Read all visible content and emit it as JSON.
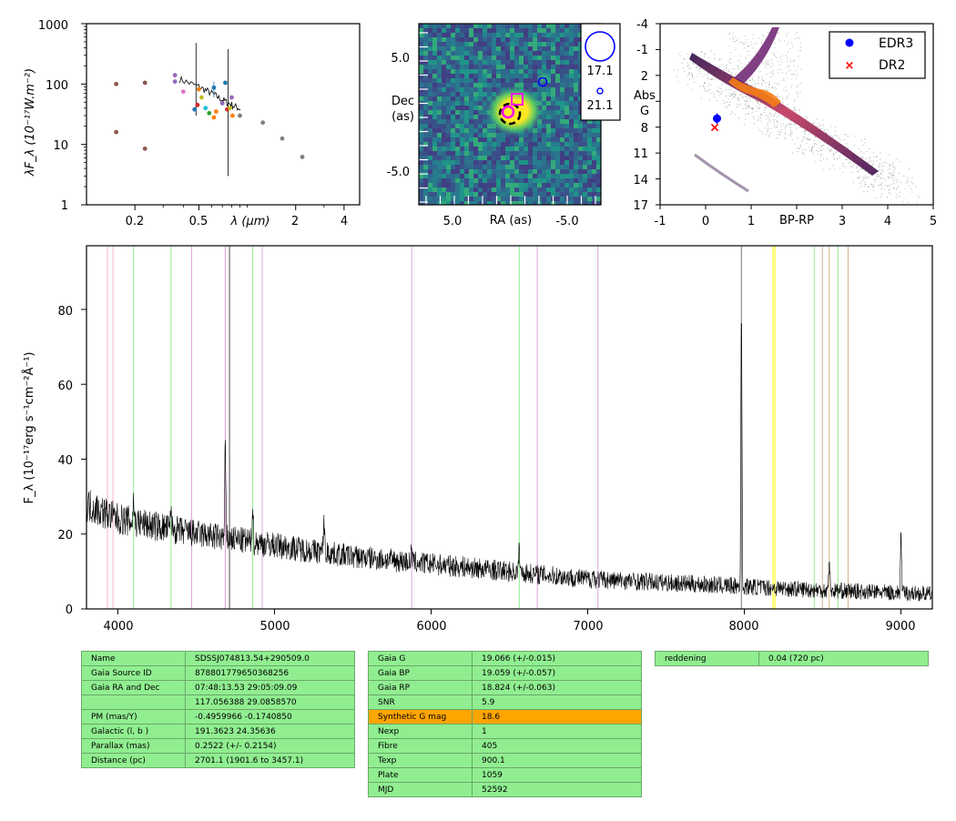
{
  "panels": {
    "sed": {
      "ylabel": "λF_λ (10⁻¹⁷W.m⁻²)",
      "xlabel": "λ (μm)",
      "yticks": [
        "1",
        "10",
        "100",
        "1000"
      ],
      "xticks": [
        "0.2",
        "0.5",
        "2",
        "4"
      ]
    },
    "image": {
      "xlabel": "RA (as)",
      "ylabel_1": "Dec",
      "ylabel_2": "(as)",
      "xticks": [
        "5.0",
        "-5.0"
      ],
      "yticks": [
        "5.0",
        "-5.0"
      ],
      "legend": [
        "17.1",
        "21.1"
      ]
    },
    "hr": {
      "xlabel": "BP-RP",
      "ylabel_1": "Abs",
      "ylabel_2": "G",
      "xticks": [
        "-1",
        "0",
        "1",
        "3",
        "4",
        "5"
      ],
      "yticks": [
        "-4",
        "-1",
        "2",
        "8",
        "11",
        "14",
        "17"
      ],
      "legend": [
        "EDR3",
        "DR2"
      ]
    },
    "spectrum": {
      "ylabel": "F_λ (10⁻¹⁷erg s⁻¹cm⁻²Å⁻¹)",
      "xticks": [
        "4000",
        "5000",
        "6000",
        "7000",
        "8000",
        "9000"
      ],
      "yticks": [
        "0",
        "20",
        "40",
        "60",
        "80"
      ]
    }
  },
  "chart_data": [
    {
      "type": "scatter",
      "name": "SED",
      "xlabel": "λ (μm)",
      "ylabel": "λF_λ (10⁻¹⁷W.m⁻²)",
      "xscale": "log",
      "yscale": "log",
      "xlim": [
        0.1,
        5.0
      ],
      "ylim": [
        1,
        1000
      ],
      "points": [
        {
          "x": 0.153,
          "y": 100,
          "c": "#8c564b"
        },
        {
          "x": 0.153,
          "y": 16,
          "c": "#8c564b"
        },
        {
          "x": 0.231,
          "y": 105,
          "c": "#8c564b"
        },
        {
          "x": 0.231,
          "y": 8.5,
          "c": "#8c564b"
        },
        {
          "x": 0.355,
          "y": 140,
          "c": "#9467bd"
        },
        {
          "x": 0.355,
          "y": 110,
          "c": "#9467bd"
        },
        {
          "x": 0.4,
          "y": 75,
          "c": "#e377c2"
        },
        {
          "x": 0.47,
          "y": 38,
          "c": "#1f77b4"
        },
        {
          "x": 0.49,
          "y": 45,
          "c": "#d62728"
        },
        {
          "x": 0.5,
          "y": 82,
          "c": "#ff7f0e"
        },
        {
          "x": 0.52,
          "y": 60,
          "c": "#bcbd22"
        },
        {
          "x": 0.55,
          "y": 40,
          "c": "#17becf"
        },
        {
          "x": 0.58,
          "y": 33,
          "c": "#2ca02c"
        },
        {
          "x": 0.62,
          "y": 28,
          "c": "#ff7f0e"
        },
        {
          "x": 0.64,
          "y": 35,
          "c": "#ff7f0e"
        },
        {
          "x": 0.62,
          "y": 87,
          "c": "#1f77b4"
        },
        {
          "x": 0.7,
          "y": 48,
          "c": "#9467bd"
        },
        {
          "x": 0.73,
          "y": 105,
          "c": "#1f77b4"
        },
        {
          "x": 0.75,
          "y": 38,
          "c": "#d62728"
        },
        {
          "x": 0.78,
          "y": 40,
          "c": "#bcbd22"
        },
        {
          "x": 0.8,
          "y": 60,
          "c": "#9467bd"
        },
        {
          "x": 0.81,
          "y": 30,
          "c": "#ff7f0e"
        },
        {
          "x": 0.9,
          "y": 30,
          "c": "#7f7f7f"
        },
        {
          "x": 1.25,
          "y": 23,
          "c": "#7f7f7f"
        },
        {
          "x": 1.65,
          "y": 12.5,
          "c": "#7f7f7f"
        },
        {
          "x": 2.2,
          "y": 6.2,
          "c": "#7f7f7f"
        }
      ],
      "spectrum_trend": [
        [
          0.38,
          120
        ],
        [
          0.5,
          90
        ],
        [
          0.6,
          70
        ],
        [
          0.7,
          55
        ],
        [
          0.8,
          45
        ],
        [
          0.92,
          38
        ]
      ]
    },
    {
      "type": "scatter",
      "name": "HR diagram",
      "xlabel": "BP-RP",
      "ylabel": "Abs G",
      "xlim": [
        -1,
        5
      ],
      "ylim": [
        17,
        -4
      ],
      "series": [
        {
          "name": "EDR3",
          "x": [
            0.25
          ],
          "y": [
            7.0
          ],
          "color": "#0000ff",
          "marker": "circle"
        },
        {
          "name": "DR2",
          "x": [
            0.2
          ],
          "y": [
            8.0
          ],
          "color": "#ff0000",
          "marker": "x"
        }
      ]
    },
    {
      "type": "line",
      "name": "Spectrum",
      "xlabel": "",
      "ylabel": "F_λ (10⁻¹⁷erg s⁻¹cm⁻²Å⁻¹)",
      "xlim": [
        3800,
        9200
      ],
      "ylim": [
        0,
        97
      ],
      "continuum": [
        [
          3800,
          28
        ],
        [
          4000,
          24
        ],
        [
          4500,
          20
        ],
        [
          5000,
          17
        ],
        [
          5500,
          14
        ],
        [
          6000,
          12
        ],
        [
          6500,
          10
        ],
        [
          7000,
          8
        ],
        [
          7500,
          7
        ],
        [
          8000,
          6
        ],
        [
          8500,
          5
        ],
        [
          9200,
          4
        ]
      ],
      "emission": [
        [
          4101,
          30
        ],
        [
          4340,
          27
        ],
        [
          4686,
          45
        ],
        [
          4861,
          29
        ],
        [
          5316,
          25
        ],
        [
          5876,
          16
        ],
        [
          6563,
          17
        ],
        [
          7035,
          10
        ],
        [
          7981,
          88
        ],
        [
          8542,
          15
        ],
        [
          9000,
          22
        ]
      ],
      "lines": [
        {
          "x": 3934,
          "c": "#ffb6c1"
        },
        {
          "x": 3969,
          "c": "#ffb6c1"
        },
        {
          "x": 4101,
          "c": "#90ee90"
        },
        {
          "x": 4340,
          "c": "#90ee90"
        },
        {
          "x": 4471,
          "c": "#dda0dd"
        },
        {
          "x": 4686,
          "c": "#dda0dd"
        },
        {
          "x": 4713,
          "c": "#dda0dd"
        },
        {
          "x": 4861,
          "c": "#90ee90"
        },
        {
          "x": 4922,
          "c": "#dda0dd"
        },
        {
          "x": 5876,
          "c": "#dda0dd"
        },
        {
          "x": 6563,
          "c": "#90ee90"
        },
        {
          "x": 6678,
          "c": "#dda0dd"
        },
        {
          "x": 7065,
          "c": "#dda0dd"
        },
        {
          "x": 8183,
          "c": "#ffff00"
        },
        {
          "x": 8195,
          "c": "#ffff00"
        },
        {
          "x": 8446,
          "c": "#90ee90"
        },
        {
          "x": 8498,
          "c": "#d2b48c"
        },
        {
          "x": 8542,
          "c": "#d2b48c"
        },
        {
          "x": 8598,
          "c": "#90ee90"
        },
        {
          "x": 8662,
          "c": "#d2b48c"
        }
      ]
    }
  ],
  "table1": [
    [
      "Name",
      "SDSSJ074813.54+290509.0"
    ],
    [
      "Gaia Source ID",
      "878801779650368256"
    ],
    [
      "Gaia RA and Dec",
      "07:48:13.53    29:05:09.09"
    ],
    [
      "",
      "117.056388    29.0858570"
    ],
    [
      "PM (mas/Y)",
      "-0.4959966    -0.1740850"
    ],
    [
      "Galactic (l, b )",
      "191.3623    24.35636"
    ],
    [
      "Parallax (mas)",
      "0.2522 (+/- 0.2154)"
    ],
    [
      "Distance (pc)",
      "2701.1 (1901.6 to 3457.1)"
    ]
  ],
  "table2": [
    [
      "Gaia G",
      "19.066 (+/-0.015)"
    ],
    [
      "Gaia BP",
      "19.059 (+/-0.057)"
    ],
    [
      "Gaia RP",
      "18.824 (+/-0.063)"
    ],
    [
      "SNR",
      "5.9"
    ],
    [
      "Synthetic G mag",
      "18.6"
    ],
    [
      "Nexp",
      "1"
    ],
    [
      "Fibre",
      "405"
    ],
    [
      "Texp",
      "900.1"
    ],
    [
      "Plate",
      "1059"
    ],
    [
      "MJD",
      "52592"
    ]
  ],
  "table3": [
    [
      "reddening",
      "0.04 (720 pc)"
    ]
  ],
  "colors": {
    "highlight": "#ffa500",
    "cell": "#90ee90"
  }
}
